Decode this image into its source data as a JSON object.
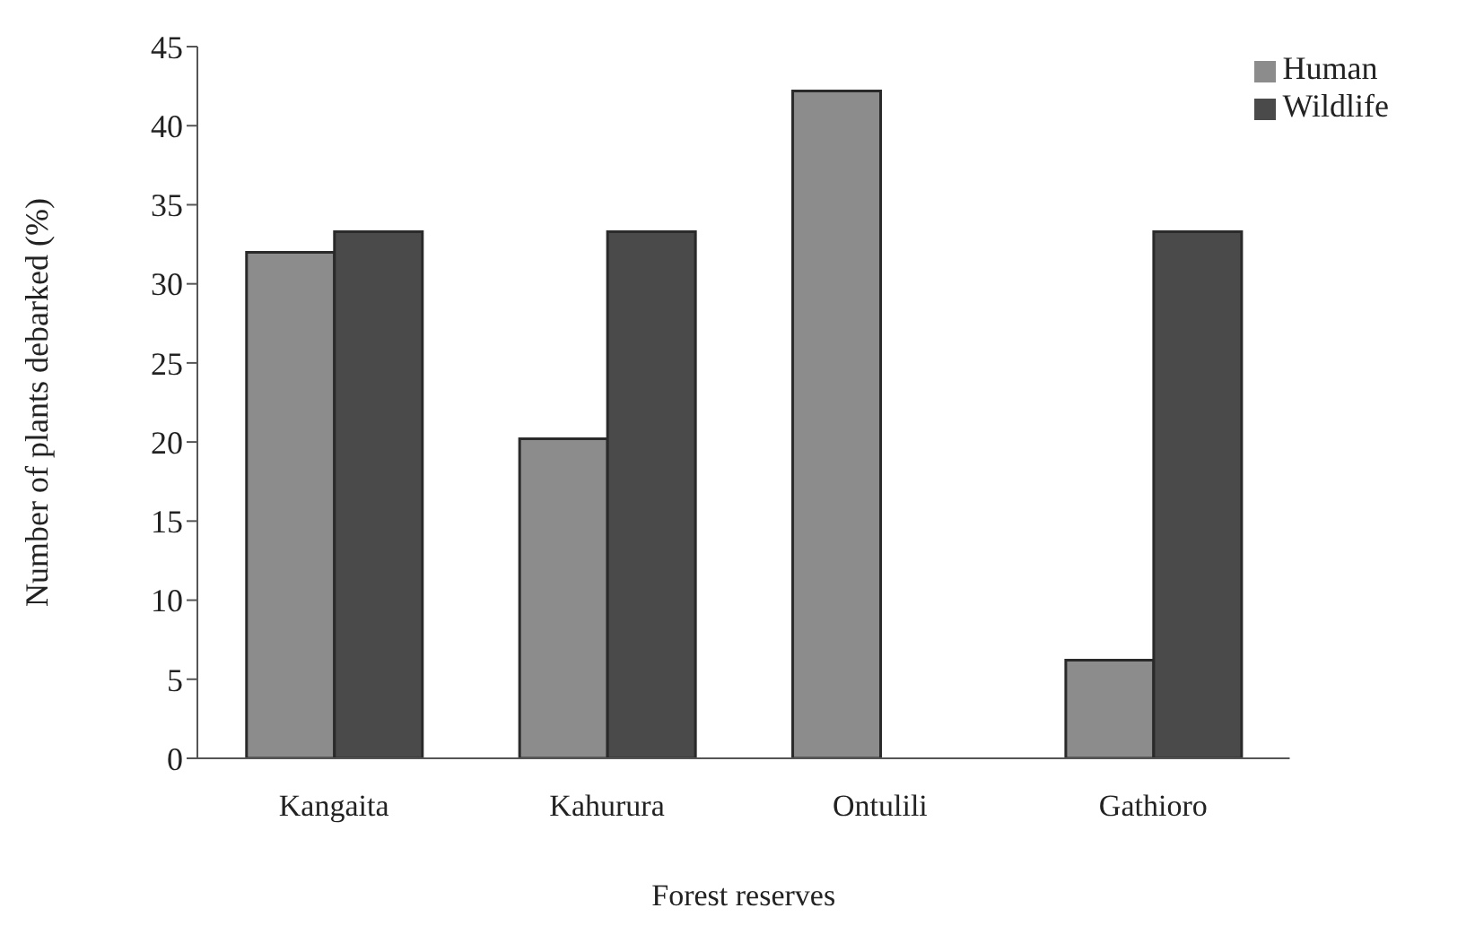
{
  "chart_data": {
    "type": "bar",
    "xlabel": "Forest reserves",
    "ylabel": "Number of plants debarked (%)",
    "categories": [
      "Kangaita",
      "Kahurura",
      "Ontulili",
      "Gathioro"
    ],
    "series": [
      {
        "name": "Human",
        "color": "#8c8c8c",
        "values": [
          32,
          20.2,
          42.2,
          6.2
        ]
      },
      {
        "name": "Wildlife",
        "color": "#4a4a4a",
        "values": [
          33.3,
          33.3,
          null,
          33.3
        ]
      }
    ],
    "ylim": [
      0,
      45
    ],
    "yticks": [
      0,
      5,
      10,
      15,
      20,
      25,
      30,
      35,
      40,
      45
    ],
    "grid": false,
    "legend": "top right"
  }
}
